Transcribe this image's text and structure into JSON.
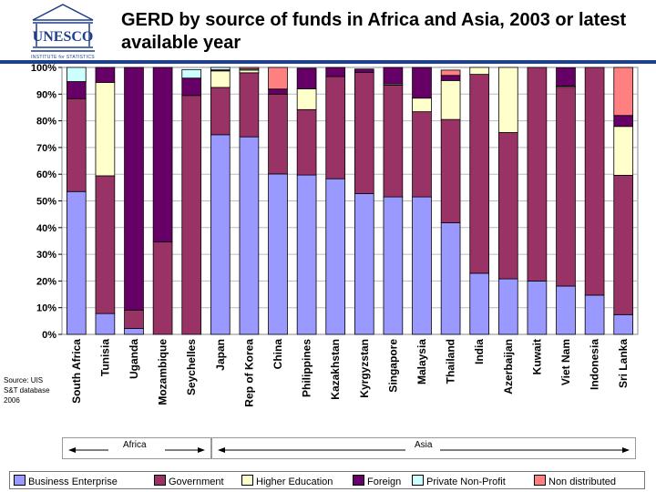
{
  "header": {
    "title": "GERD by source of funds in Africa and Asia, 2003 or latest available year",
    "logo_text": "UNESCO",
    "logo_caption": "INSTITUTE for STATISTICS"
  },
  "source_note": "Source: UIS S&T database 2006",
  "groups": [
    {
      "label": "Africa"
    },
    {
      "label": "Asia"
    }
  ],
  "colors": {
    "Business Enterprise": "#9999ff",
    "Government": "#993366",
    "Higher Education": "#ffffcc",
    "Foreign": "#660066",
    "Private Non-Profit": "#ccffff",
    "Non distributed": "#ff8080"
  },
  "chart_data": {
    "type": "bar",
    "stacked": true,
    "percent": true,
    "ylim": [
      0,
      100
    ],
    "yticks": [
      "0%",
      "10%",
      "20%",
      "30%",
      "40%",
      "50%",
      "60%",
      "70%",
      "80%",
      "90%",
      "100%"
    ],
    "grid": true,
    "legend_position": "bottom",
    "categories": [
      "South Africa",
      "Tunisia",
      "Uganda",
      "Mozambique",
      "Seychelles",
      "Japan",
      "Rep of Korea",
      "China",
      "Philippines",
      "Kazakhstan",
      "Kyrgyzstan",
      "Singapore",
      "Malaysia",
      "Thailand",
      "India",
      "Azerbaijan",
      "Kuwait",
      "Viet Nam",
      "Indonesia",
      "Sri Lanka"
    ],
    "series": [
      {
        "name": "Business Enterprise",
        "values": [
          53.5,
          7.8,
          2.2,
          0,
          0,
          74.8,
          74.0,
          60.1,
          59.7,
          58.3,
          52.7,
          51.5,
          51.5,
          41.8,
          22.9,
          20.8,
          20.0,
          18.1,
          14.7,
          7.4
        ]
      },
      {
        "name": "Government",
        "values": [
          34.8,
          51.6,
          6.9,
          34.6,
          89.5,
          17.7,
          24.0,
          29.9,
          24.5,
          38.3,
          45.4,
          41.9,
          31.9,
          38.7,
          74.5,
          54.8,
          80.0,
          74.5,
          85.3,
          52.2
        ]
      },
      {
        "name": "Higher Education",
        "values": [
          0,
          35.0,
          0,
          0,
          0,
          6.2,
          1.0,
          0,
          7.8,
          0,
          0,
          0.4,
          5.1,
          14.6,
          2.6,
          24.4,
          0,
          0.4,
          0,
          18.3
        ]
      },
      {
        "name": "Foreign",
        "values": [
          6.4,
          5.6,
          90.9,
          65.4,
          6.5,
          0.4,
          0,
          1.9,
          7.7,
          3.4,
          1.3,
          6.2,
          11.5,
          1.9,
          0,
          0,
          0,
          6.9,
          0,
          4.1
        ]
      },
      {
        "name": "Private Non-Profit",
        "values": [
          5.3,
          0,
          0,
          0,
          3.2,
          0.9,
          0.4,
          0,
          0,
          0,
          0,
          0,
          0,
          0,
          0,
          0,
          0,
          0,
          0,
          0
        ]
      },
      {
        "name": "Non distributed",
        "values": [
          0,
          0,
          0,
          0,
          0,
          0,
          0.6,
          8.1,
          0,
          0,
          0,
          0,
          0,
          2.0,
          0,
          0,
          0,
          0,
          0,
          18.0
        ]
      }
    ],
    "annotations": [
      "Africa",
      "Asia"
    ]
  }
}
